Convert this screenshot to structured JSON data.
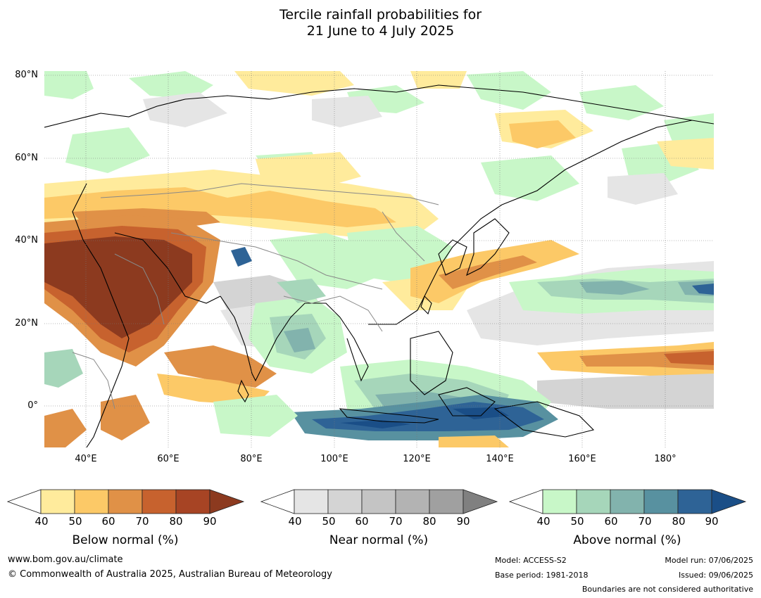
{
  "title": {
    "line1": "Tercile rainfall probabilities for",
    "line2": "21 June to 4 July 2025"
  },
  "map": {
    "lat_labels": [
      "80°N",
      "60°N",
      "40°N",
      "20°N",
      "0°"
    ],
    "lon_labels": [
      "40°E",
      "60°E",
      "80°E",
      "100°E",
      "120°E",
      "140°E",
      "160°E",
      "180°"
    ]
  },
  "colorbars": [
    {
      "title": "Below normal (%)",
      "ticks": [
        "40",
        "50",
        "60",
        "70",
        "80",
        "90"
      ],
      "colors": [
        "#ffffff",
        "#ffeb9c",
        "#fcc967",
        "#e09147",
        "#c7622e",
        "#a74424",
        "#8c3a1f"
      ]
    },
    {
      "title": "Near normal (%)",
      "ticks": [
        "40",
        "50",
        "60",
        "70",
        "80",
        "90"
      ],
      "colors": [
        "#ffffff",
        "#e5e5e5",
        "#d4d4d4",
        "#c4c4c4",
        "#b3b3b3",
        "#a0a0a0",
        "#808080"
      ]
    },
    {
      "title": "Above normal (%)",
      "ticks": [
        "40",
        "50",
        "60",
        "70",
        "80",
        "90"
      ],
      "colors": [
        "#ffffff",
        "#c8f7c8",
        "#a6d6ba",
        "#82b3ad",
        "#5891a0",
        "#2e6396",
        "#1a4e87"
      ]
    }
  ],
  "footer": {
    "website": "www.bom.gov.au/climate",
    "copyright": "© Commonwealth of Australia 2025, Australian Bureau of Meteorology",
    "model": "Model: ACCESS-S2",
    "base_period": "Base period: 1981-2018",
    "model_run": "Model run: 07/06/2025",
    "issued": "Issued: 09/06/2025",
    "boundaries": "Boundaries are not considered authoritative"
  }
}
